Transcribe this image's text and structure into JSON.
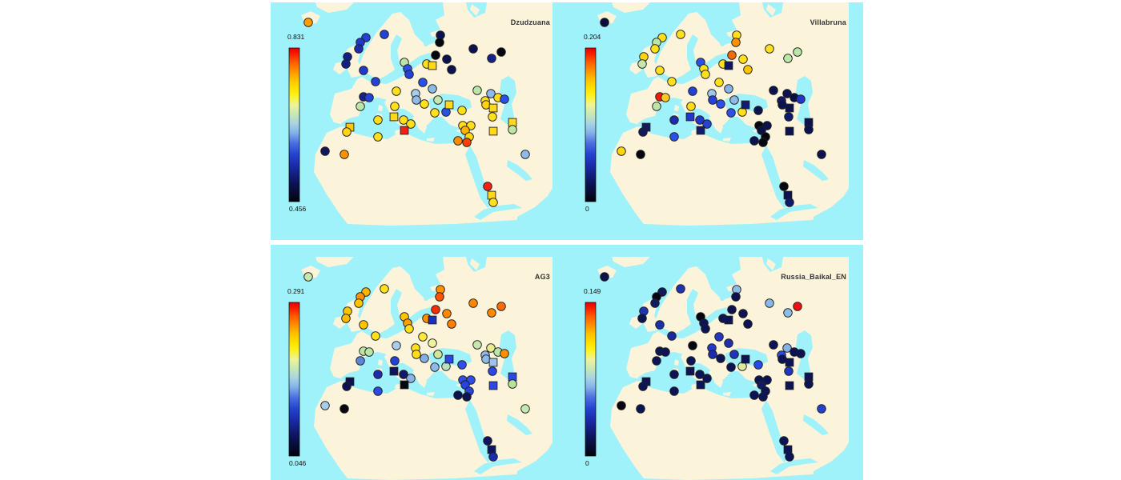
{
  "figure": {
    "background": "#ffffff",
    "sea_color": "#9ff1fa",
    "land_color": "#fbf4da",
    "marker_outline": "#1f1f1f",
    "colorbar_gradient": [
      "#e40000",
      "#ff5a00",
      "#ff9100",
      "#ffc400",
      "#ffe400",
      "#fcf32c",
      "#eef39c",
      "#c8e8b4",
      "#a8d4e4",
      "#85b3e8",
      "#4a6ee0",
      "#2643d0",
      "#1b2cae",
      "#121d7a",
      "#0b124e",
      "#060a2c",
      "#020308"
    ]
  },
  "chart_data": {
    "type": "map-scatter",
    "layout": "2x2 grid of identical maps (Europe, North Africa, Near East); same sample sites in every panel, marker color encodes ancestry proportion per panel colorbar; circles and squares are site markers",
    "legend_position": "left colorbar per panel, red=max (top) to black=min (bottom)",
    "locations": [
      [
        47,
        25,
        "c"
      ],
      [
        142,
        40,
        "c"
      ],
      [
        119,
        44,
        "c"
      ],
      [
        112,
        50,
        "c"
      ],
      [
        110,
        58,
        "c"
      ],
      [
        96,
        68,
        "c"
      ],
      [
        94,
        77,
        "c"
      ],
      [
        116,
        85,
        "c"
      ],
      [
        131,
        99,
        "c"
      ],
      [
        212,
        41,
        "c"
      ],
      [
        211,
        50,
        "c"
      ],
      [
        206,
        66,
        "c"
      ],
      [
        220,
        71,
        "c"
      ],
      [
        253,
        58,
        "c"
      ],
      [
        288,
        62,
        "c"
      ],
      [
        276,
        70,
        "c"
      ],
      [
        226,
        84,
        "c"
      ],
      [
        167,
        75,
        "c"
      ],
      [
        171,
        83,
        "c"
      ],
      [
        173,
        90,
        "c"
      ],
      [
        195,
        77,
        "c"
      ],
      [
        202,
        79,
        "s"
      ],
      [
        190,
        100,
        "c"
      ],
      [
        202,
        108,
        "c"
      ],
      [
        116,
        118,
        "c"
      ],
      [
        123,
        119,
        "c"
      ],
      [
        112,
        130,
        "c"
      ],
      [
        157,
        111,
        "c"
      ],
      [
        181,
        114,
        "c"
      ],
      [
        182,
        122,
        "c"
      ],
      [
        192,
        127,
        "c"
      ],
      [
        209,
        122,
        "c"
      ],
      [
        205,
        138,
        "c"
      ],
      [
        219,
        137,
        "c"
      ],
      [
        223,
        128,
        "s"
      ],
      [
        239,
        135,
        "c"
      ],
      [
        258,
        110,
        "c"
      ],
      [
        275,
        114,
        "c"
      ],
      [
        268,
        123,
        "c"
      ],
      [
        284,
        119,
        "c"
      ],
      [
        292,
        121,
        "c"
      ],
      [
        269,
        128,
        "c"
      ],
      [
        278,
        132,
        "s"
      ],
      [
        277,
        143,
        "c"
      ],
      [
        302,
        150,
        "s"
      ],
      [
        302,
        159,
        "c"
      ],
      [
        278,
        161,
        "s"
      ],
      [
        155,
        130,
        "c"
      ],
      [
        154,
        143,
        "s"
      ],
      [
        166,
        147,
        "c"
      ],
      [
        134,
        147,
        "c"
      ],
      [
        175,
        152,
        "c"
      ],
      [
        134,
        168,
        "c"
      ],
      [
        167,
        160,
        "s"
      ],
      [
        99,
        156,
        "s"
      ],
      [
        95,
        162,
        "c"
      ],
      [
        68,
        186,
        "c"
      ],
      [
        92,
        190,
        "c"
      ],
      [
        240,
        154,
        "c"
      ],
      [
        250,
        154,
        "c"
      ],
      [
        243,
        160,
        "c"
      ],
      [
        248,
        168,
        "c"
      ],
      [
        234,
        173,
        "c"
      ],
      [
        245,
        175,
        "c"
      ],
      [
        318,
        190,
        "c"
      ],
      [
        271,
        230,
        "c"
      ],
      [
        276,
        241,
        "s"
      ],
      [
        278,
        250,
        "c"
      ]
    ],
    "panels": [
      {
        "title": "Dzudzuana",
        "scale_max_label": "0.831",
        "scale_min_label": "0.456",
        "colors": [
          "#ff9e00",
          "#2442d8",
          "#2442d8",
          "#2039cc",
          "#1b2cae",
          "#131f86",
          "#131f86",
          "#2039cc",
          "#2442d8",
          "#0c1250",
          "#05070f",
          "#05070f",
          "#0c1250",
          "#0c1250",
          "#05070f",
          "#16228a",
          "#0c1250",
          "#bce6a8",
          "#2b50e8",
          "#2442d8",
          "#ffdf1e",
          "#ffd81a",
          "#2b50e8",
          "#8cbbe8",
          "#16228a",
          "#2442d8",
          "#bce6a8",
          "#ffe01a",
          "#a8cdeb",
          "#8fb9e8",
          "#ffe01a",
          "#c6e8ae",
          "#ffe01a",
          "#2b50e8",
          "#ffd81a",
          "#ffe01a",
          "#bce6a8",
          "#8fb9e8",
          "#ffe01a",
          "#ffdd18",
          "#2b50e8",
          "#ffd40f",
          "#ffd81a",
          "#ffe01a",
          "#ffd81a",
          "#bce6a8",
          "#ffd81a",
          "#ffe01a",
          "#ffd81a",
          "#ffe01a",
          "#ffe01a",
          "#ffe01a",
          "#ffe01a",
          "#f32015",
          "#ffc800",
          "#ffd416",
          "#10185e",
          "#ff9100",
          "#ffdd18",
          "#ffdd18",
          "#ffb200",
          "#ffd814",
          "#ff8c00",
          "#f8420a",
          "#8fb9e8",
          "#f32015",
          "#ffd81a",
          "#ffe01a"
        ]
      },
      {
        "title": "Villabruna",
        "scale_max_label": "0.204",
        "scale_min_label": "0",
        "colors": [
          "#0a0e38",
          "#ffe01a",
          "#ffe01a",
          "#bce6a8",
          "#ffe01a",
          "#ffd40f",
          "#c6e8ae",
          "#ffe01a",
          "#ffe01a",
          "#ffe01a",
          "#ff9100",
          "#f26a0a",
          "#ffe01a",
          "#ffe01a",
          "#bce6a8",
          "#bce6a8",
          "#ffc400",
          "#2b50e8",
          "#ffe01a",
          "#ffe01a",
          "#ffe01a",
          "#0d1766",
          "#ffe01a",
          "#85b3e8",
          "#ee1c0c",
          "#ffc81e",
          "#bce6a8",
          "#2442d8",
          "#a0c6ea",
          "#2442d8",
          "#2b50e8",
          "#8fb9e8",
          "#2b50e8",
          "#ffe01a",
          "#121c74",
          "#0c1250",
          "#0c1250",
          "#0c1250",
          "#10186e",
          "#0a0f46",
          "#2336c8",
          "#0c1250",
          "#0c1250",
          "#10186e",
          "#0c1250",
          "#0c1250",
          "#0c1250",
          "#ffdd18",
          "#2039cc",
          "#2039cc",
          "#1b2cae",
          "#2644d0",
          "#2b50e8",
          "#141c6a",
          "#12195c",
          "#12195c",
          "#ffd40f",
          "#05070f",
          "#05070f",
          "#0c1250",
          "#0a0f46",
          "#05070f",
          "#0c1250",
          "#05070f",
          "#0c1250",
          "#05070f",
          "#0c1250",
          "#10186e"
        ]
      },
      {
        "title": "AG3",
        "scale_max_label": "0.291",
        "scale_min_label": "0.046",
        "colors": [
          "#c6e8ae",
          "#ffe01a",
          "#ffb400",
          "#ff9100",
          "#ffc400",
          "#ffc400",
          "#ffbb00",
          "#ffc400",
          "#ffe01a",
          "#ff9100",
          "#fb5303",
          "#f42d07",
          "#ff8800",
          "#ff8800",
          "#fb6a05",
          "#ff8800",
          "#ff7e06",
          "#ffc400",
          "#ff9e00",
          "#ffe01a",
          "#ff9100",
          "#1b30bc",
          "#ffe838",
          "#eef39c",
          "#bce6a8",
          "#bce6a8",
          "#5c86d8",
          "#a8cdeb",
          "#ffe01a",
          "#ffdd18",
          "#85aee4",
          "#cfe89a",
          "#8fb9e8",
          "#b8e0c4",
          "#2b47e8",
          "#3050e8",
          "#c6e8ae",
          "#e8ee8e",
          "#90b8e8",
          "#bce6a8",
          "#ff9100",
          "#8fb9e8",
          "#9cc4ea",
          "#2b47e8",
          "#2b47e8",
          "#b5e39c",
          "#2b47e8",
          "#2442d8",
          "#0e155e",
          "#10186a",
          "#1b2cae",
          "#8ab4e6",
          "#2d49e0",
          "#05070f",
          "#0c1250",
          "#0c1250",
          "#a6cce8",
          "#05070f",
          "#2f4de8",
          "#2f4de8",
          "#2744e0",
          "#2744e0",
          "#0c1250",
          "#0c1450",
          "#c6e8ae",
          "#0e1560",
          "#0e1560",
          "#1b2cae"
        ]
      },
      {
        "title": "Russia_Baikal_EN",
        "scale_max_label": "0.149",
        "scale_min_label": "0",
        "colors": [
          "#0d124a",
          "#1e33b2",
          "#11195e",
          "#05060f",
          "#121a62",
          "#1e33b2",
          "#0d1352",
          "#1c2fa8",
          "#1a2a9e",
          "#8cbce8",
          "#0c124e",
          "#0c1250",
          "#0e1456",
          "#88b8e8",
          "#ee1010",
          "#8cbce8",
          "#0d1456",
          "#06080f",
          "#0d1456",
          "#0d1456",
          "#0d1456",
          "#0d1456",
          "#2337c0",
          "#1f30ae",
          "#0d1456",
          "#0d1456",
          "#0d1456",
          "#05060f",
          "#2239cc",
          "#1b2cae",
          "#0d1456",
          "#2036b8",
          "#0d1456",
          "#dcec9a",
          "#0d1456",
          "#2b49e8",
          "#0d1456",
          "#84b2e8",
          "#2b49e8",
          "#0d1456",
          "#0d1456",
          "#0d1456",
          "#0d1456",
          "#2036c0",
          "#0d1456",
          "#0d1456",
          "#0d1456",
          "#0d1456",
          "#0d1456",
          "#0d1456",
          "#0d1456",
          "#0d1456",
          "#0d1456",
          "#0d1456",
          "#0d1456",
          "#0d1456",
          "#05060f",
          "#0d1456",
          "#0d1456",
          "#0d1456",
          "#121a66",
          "#0d1456",
          "#0d1456",
          "#0d1456",
          "#2440cc",
          "#0d1456",
          "#0d1456",
          "#0d1456"
        ]
      }
    ]
  }
}
